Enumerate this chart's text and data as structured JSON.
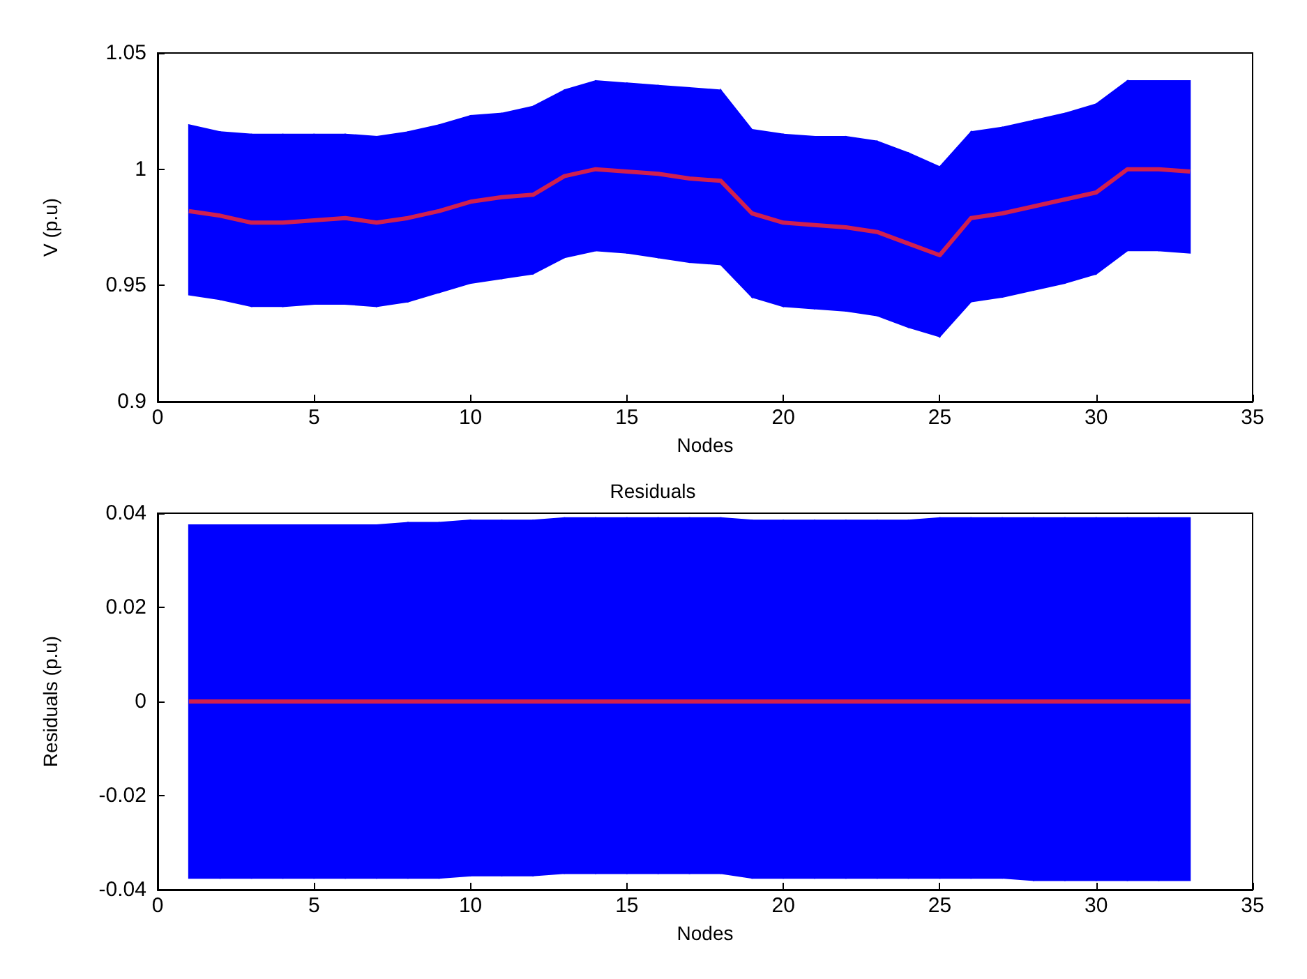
{
  "chart_data": [
    {
      "type": "line",
      "xlabel": "Nodes",
      "ylabel": "V (p.u)",
      "x": [
        1,
        2,
        3,
        4,
        5,
        6,
        7,
        8,
        9,
        10,
        11,
        12,
        13,
        14,
        15,
        16,
        17,
        18,
        19,
        20,
        21,
        22,
        23,
        24,
        25,
        26,
        27,
        28,
        29,
        30,
        31,
        32,
        33
      ],
      "xlim": [
        0,
        35
      ],
      "xticks": [
        0,
        5,
        10,
        15,
        20,
        25,
        30,
        35
      ],
      "ylim": [
        0.9,
        1.05
      ],
      "yticks": [
        0.9,
        0.95,
        1,
        1.05
      ],
      "series": [
        {
          "color": "#d0204f",
          "values": [
            0.982,
            0.98,
            0.977,
            0.977,
            0.978,
            0.979,
            0.977,
            0.979,
            0.982,
            0.986,
            0.988,
            0.989,
            0.997,
            1.0,
            0.999,
            0.998,
            0.996,
            0.995,
            0.981,
            0.977,
            0.976,
            0.975,
            0.973,
            0.968,
            0.963,
            0.979,
            0.981,
            0.984,
            0.987,
            0.99,
            1.0,
            1.0,
            0.999
          ],
          "upper": [
            1.019,
            1.016,
            1.015,
            1.015,
            1.015,
            1.015,
            1.014,
            1.016,
            1.019,
            1.023,
            1.024,
            1.027,
            1.034,
            1.038,
            1.037,
            1.036,
            1.035,
            1.034,
            1.017,
            1.015,
            1.014,
            1.014,
            1.012,
            1.007,
            1.001,
            1.016,
            1.018,
            1.021,
            1.024,
            1.028,
            1.038,
            1.038,
            1.038
          ],
          "lower": [
            0.946,
            0.944,
            0.941,
            0.941,
            0.942,
            0.942,
            0.941,
            0.943,
            0.947,
            0.951,
            0.953,
            0.955,
            0.962,
            0.965,
            0.964,
            0.962,
            0.96,
            0.959,
            0.945,
            0.941,
            0.94,
            0.939,
            0.937,
            0.932,
            0.928,
            0.943,
            0.945,
            0.948,
            0.951,
            0.955,
            0.965,
            0.965,
            0.964
          ]
        }
      ]
    },
    {
      "type": "line",
      "title": "Residuals",
      "xlabel": "Nodes",
      "ylabel": "Residuals (p.u)",
      "x": [
        1,
        2,
        3,
        4,
        5,
        6,
        7,
        8,
        9,
        10,
        11,
        12,
        13,
        14,
        15,
        16,
        17,
        18,
        19,
        20,
        21,
        22,
        23,
        24,
        25,
        26,
        27,
        28,
        29,
        30,
        31,
        32,
        33
      ],
      "xlim": [
        0,
        35
      ],
      "xticks": [
        0,
        5,
        10,
        15,
        20,
        25,
        30,
        35
      ],
      "ylim": [
        -0.04,
        0.04
      ],
      "yticks": [
        -0.04,
        -0.02,
        0,
        0.02,
        0.04
      ],
      "series": [
        {
          "color": "#d0204f",
          "values": [
            0,
            0,
            0,
            0,
            0,
            0,
            0,
            0,
            0,
            0,
            0,
            0,
            0,
            0,
            0,
            0,
            0,
            0,
            0,
            0,
            0,
            0,
            0,
            0,
            0,
            0,
            0,
            0,
            0,
            0,
            0,
            0,
            0
          ],
          "upper": [
            0.0375,
            0.0375,
            0.0375,
            0.0375,
            0.0375,
            0.0375,
            0.0375,
            0.038,
            0.038,
            0.0385,
            0.0385,
            0.0385,
            0.039,
            0.039,
            0.039,
            0.039,
            0.039,
            0.039,
            0.0385,
            0.0385,
            0.0385,
            0.0385,
            0.0385,
            0.0385,
            0.039,
            0.039,
            0.039,
            0.039,
            0.039,
            0.039,
            0.039,
            0.039,
            0.039
          ],
          "lower": [
            -0.0375,
            -0.0375,
            -0.0375,
            -0.0375,
            -0.0375,
            -0.0375,
            -0.0375,
            -0.0375,
            -0.0375,
            -0.037,
            -0.037,
            -0.037,
            -0.0365,
            -0.0365,
            -0.0365,
            -0.0365,
            -0.0365,
            -0.0365,
            -0.0375,
            -0.0375,
            -0.0375,
            -0.0375,
            -0.0375,
            -0.0375,
            -0.0375,
            -0.0375,
            -0.0375,
            -0.038,
            -0.038,
            -0.038,
            -0.038,
            -0.038,
            -0.038
          ]
        }
      ]
    }
  ]
}
